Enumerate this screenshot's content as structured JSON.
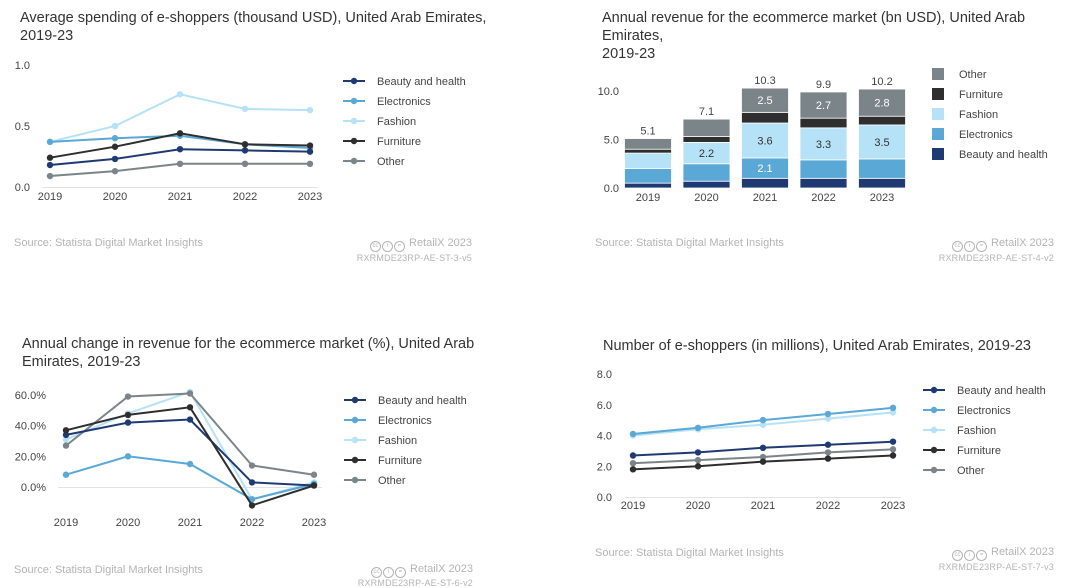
{
  "colors": {
    "beauty": "#1f3a73",
    "electronics": "#5aa8d6",
    "fashion": "#b6e2f7",
    "furniture": "#2e2e2e",
    "other": "#7a8489",
    "axis_text": "#444444",
    "muted": "#b4b4b4"
  },
  "charts": [
    {
      "title": "Average spending of e-shoppers (thousand USD), United Arab Emirates, 2019-23",
      "title_lines": [
        "Average spending of e-shoppers (thousand USD), United Arab Emirates,",
        "2019-23"
      ],
      "source": "Source: Statista Digital Market Insights",
      "brand": "RetailX 2023",
      "code": "RXRMDE23RP-AE-ST-3-v5"
    },
    {
      "title": "Annual revenue for the ecommerce market (bn USD), United Arab Emirates, 2019-23",
      "title_lines": [
        "Annual revenue for the ecommerce market (bn USD), United Arab Emirates,",
        "2019-23"
      ],
      "source": "Source: Statista Digital Market Insights",
      "brand": "RetailX 2023",
      "code": "RXRMDE23RP-AE-ST-4-v2"
    },
    {
      "title": "Annual change in revenue for the ecommerce market (%), United Arab Emirates, 2019-23",
      "title_lines": [
        "Annual change in revenue for the ecommerce market (%), United Arab",
        "Emirates, 2019-23"
      ],
      "source": "Source: Statista Digital Market Insights",
      "brand": "RetailX 2023",
      "code": "RXRMDE23RP-AE-ST-6-v2"
    },
    {
      "title": "Number of e-shoppers (in millions), United Arab Emirates, 2019-23",
      "title_lines": [
        "Number of e-shoppers (in millions), United Arab Emirates, 2019-23"
      ],
      "source": "Source: Statista Digital Market Insights",
      "brand": "RetailX 2023",
      "code": "RXRMDE23RP-AE-ST-7-v3"
    }
  ],
  "chart_data": [
    {
      "type": "line",
      "title": "Average spending of e-shoppers (thousand USD), United Arab Emirates, 2019-23",
      "categories": [
        "2019",
        "2020",
        "2021",
        "2022",
        "2023"
      ],
      "ylim": [
        0,
        1.0
      ],
      "yticks": [
        0,
        0.5,
        1.0
      ],
      "ytick_labels": [
        "0.0",
        "0.5",
        "1.0"
      ],
      "legend": "right",
      "series": [
        {
          "name": "Beauty and health",
          "key": "beauty",
          "values": [
            0.18,
            0.23,
            0.31,
            0.3,
            0.29
          ]
        },
        {
          "name": "Electronics",
          "key": "electronics",
          "values": [
            0.37,
            0.4,
            0.42,
            0.35,
            0.32
          ]
        },
        {
          "name": "Fashion",
          "key": "fashion",
          "values": [
            0.37,
            0.5,
            0.76,
            0.64,
            0.63
          ]
        },
        {
          "name": "Furniture",
          "key": "furniture",
          "values": [
            0.24,
            0.33,
            0.44,
            0.35,
            0.34
          ]
        },
        {
          "name": "Other",
          "key": "other",
          "values": [
            0.09,
            0.13,
            0.19,
            0.19,
            0.19
          ]
        }
      ]
    },
    {
      "type": "bar",
      "stacked": true,
      "title": "Annual revenue for the ecommerce market (bn USD), United Arab Emirates, 2019-23",
      "categories": [
        "2019",
        "2020",
        "2021",
        "2022",
        "2023"
      ],
      "ylim": [
        0,
        10.5
      ],
      "yticks": [
        0,
        5,
        10
      ],
      "ytick_labels": [
        "0.0",
        "5.0",
        "10.0"
      ],
      "totals": [
        "5.1",
        "7.1",
        "10.3",
        "9.9",
        "10.2"
      ],
      "legend": "right",
      "legend_order": [
        "Other",
        "Furniture",
        "Fashion",
        "Electronics",
        "Beauty and health"
      ],
      "series": [
        {
          "name": "Beauty and health",
          "key": "beauty",
          "values": [
            0.5,
            0.7,
            1.0,
            1.0,
            1.0
          ]
        },
        {
          "name": "Electronics",
          "key": "electronics",
          "values": [
            1.5,
            1.8,
            2.1,
            1.9,
            2.0
          ]
        },
        {
          "name": "Fashion",
          "key": "fashion",
          "values": [
            1.6,
            2.2,
            3.6,
            3.3,
            3.5
          ]
        },
        {
          "name": "Furniture",
          "key": "furniture",
          "values": [
            0.4,
            0.6,
            1.1,
            1.0,
            0.9
          ]
        },
        {
          "name": "Other",
          "key": "other",
          "values": [
            1.1,
            1.8,
            2.5,
            2.7,
            2.8
          ]
        }
      ],
      "segment_labels": [
        {
          "series": "Electronics",
          "index": 2,
          "text": "2.1"
        },
        {
          "series": "Fashion",
          "index": 1,
          "text": "2.2"
        },
        {
          "series": "Fashion",
          "index": 2,
          "text": "3.6"
        },
        {
          "series": "Fashion",
          "index": 3,
          "text": "3.3"
        },
        {
          "series": "Fashion",
          "index": 4,
          "text": "3.5"
        },
        {
          "series": "Other",
          "index": 2,
          "text": "2.5"
        },
        {
          "series": "Other",
          "index": 3,
          "text": "2.7"
        },
        {
          "series": "Other",
          "index": 4,
          "text": "2.8"
        }
      ]
    },
    {
      "type": "line",
      "title": "Annual change in revenue for the ecommerce market (%), United Arab Emirates, 2019-23",
      "categories": [
        "2019",
        "2020",
        "2021",
        "2022",
        "2023"
      ],
      "ylim": [
        -10,
        65
      ],
      "yticks": [
        0,
        20,
        40,
        60
      ],
      "ytick_labels": [
        "0.0%",
        "20.0%",
        "40.0%",
        "60.0%"
      ],
      "legend": "right",
      "series": [
        {
          "name": "Beauty and health",
          "key": "beauty",
          "values": [
            34,
            42,
            44,
            3,
            1
          ]
        },
        {
          "name": "Electronics",
          "key": "electronics",
          "values": [
            8,
            20,
            15,
            -8,
            2
          ]
        },
        {
          "name": "Fashion",
          "key": "fashion",
          "values": [
            31,
            48,
            62,
            -8,
            3
          ]
        },
        {
          "name": "Furniture",
          "key": "furniture",
          "values": [
            37,
            47,
            52,
            -12,
            1
          ]
        },
        {
          "name": "Other",
          "key": "other",
          "values": [
            27,
            59,
            61,
            14,
            8
          ]
        }
      ]
    },
    {
      "type": "line",
      "title": "Number of e-shoppers (in millions), United Arab Emirates, 2019-23",
      "categories": [
        "2019",
        "2020",
        "2021",
        "2022",
        "2023"
      ],
      "ylim": [
        0,
        8.0
      ],
      "yticks": [
        0,
        2,
        4,
        6,
        8
      ],
      "ytick_labels": [
        "0.0",
        "2.0",
        "4.0",
        "6.0",
        "8.0"
      ],
      "legend": "right",
      "series": [
        {
          "name": "Beauty and health",
          "key": "beauty",
          "values": [
            2.7,
            2.9,
            3.2,
            3.4,
            3.6
          ]
        },
        {
          "name": "Electronics",
          "key": "electronics",
          "values": [
            4.1,
            4.5,
            5.0,
            5.4,
            5.8
          ]
        },
        {
          "name": "Fashion",
          "key": "fashion",
          "values": [
            4.0,
            4.4,
            4.7,
            5.1,
            5.5
          ]
        },
        {
          "name": "Furniture",
          "key": "furniture",
          "values": [
            1.8,
            2.0,
            2.3,
            2.5,
            2.7
          ]
        },
        {
          "name": "Other",
          "key": "other",
          "values": [
            2.2,
            2.4,
            2.6,
            2.9,
            3.1
          ]
        }
      ]
    }
  ]
}
